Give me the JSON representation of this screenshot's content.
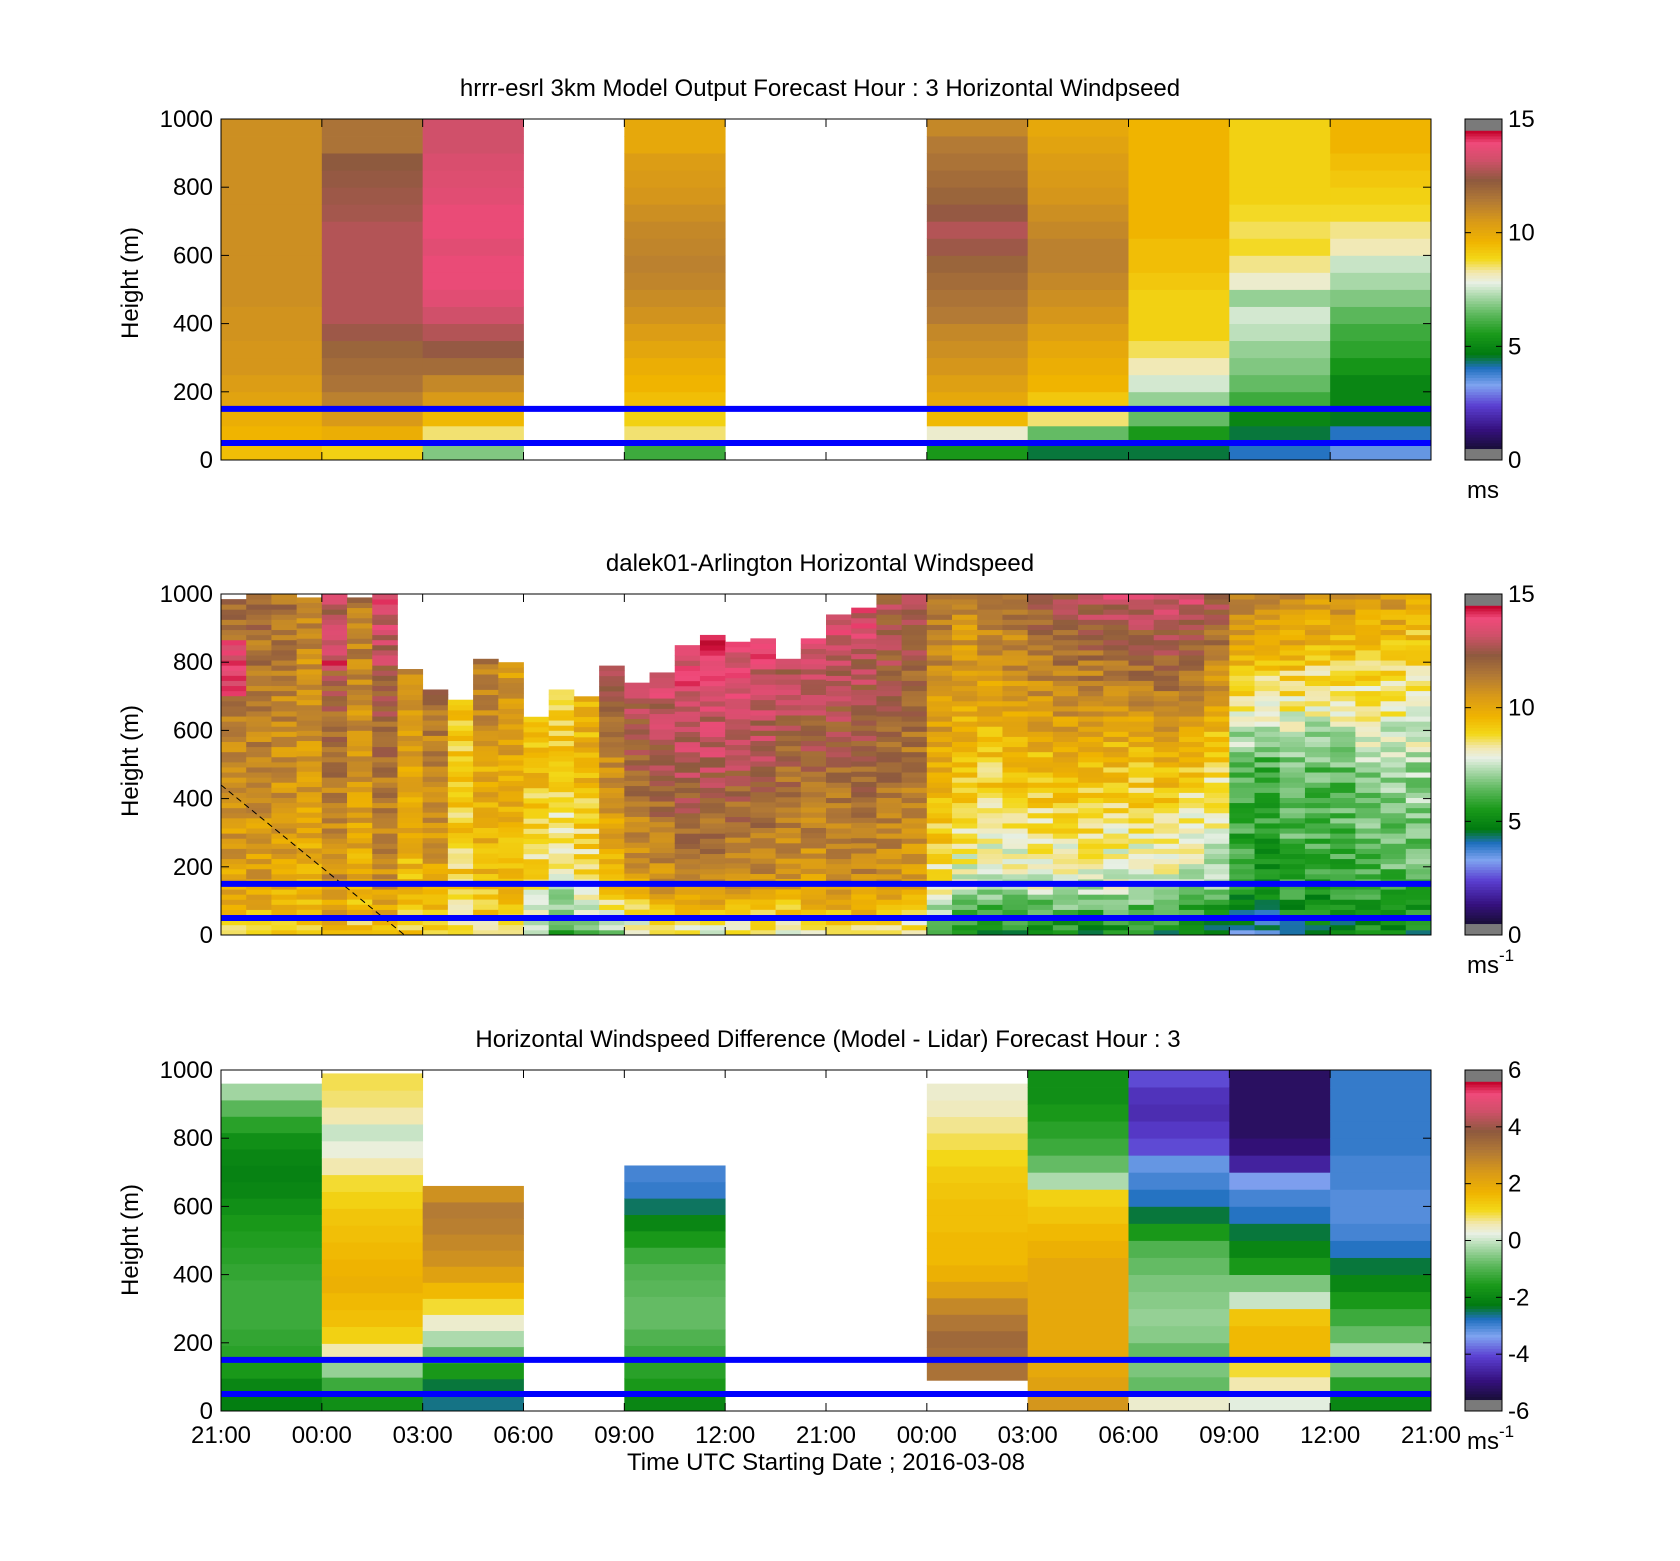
{
  "chart_data": [
    {
      "type": "heatmap",
      "title": "hrrr-esrl 3km Model Output   Forecast Hour : 3 Horizontal Windpseed",
      "ylabel": "Height (m)",
      "ylim": [
        0,
        1000
      ],
      "yticks": [
        "0",
        "200",
        "400",
        "600",
        "800",
        "1000"
      ],
      "colorbar": {
        "min": 0,
        "max": 15,
        "ticks": [
          "0",
          "5",
          "10",
          "15"
        ],
        "unit": "ms"
      },
      "reference_lines_m": [
        50,
        150
      ],
      "columns": [
        {
          "slot": 0,
          "top_m": 1000,
          "bottom_m": 0,
          "profile": [
            9.4,
            9.6,
            9.8,
            10.2,
            10.4,
            10.6,
            10.6,
            10.7,
            10.7,
            10.8,
            10.8,
            10.8,
            10.8,
            10.8,
            10.8,
            10.8,
            10.8,
            10.8,
            10.8,
            10.8
          ]
        },
        {
          "slot": 1,
          "top_m": 1000,
          "bottom_m": 0,
          "profile": [
            9.0,
            9.8,
            10.5,
            11.2,
            11.6,
            11.8,
            12.0,
            12.5,
            12.8,
            12.8,
            12.8,
            12.8,
            12.8,
            12.8,
            12.6,
            12.5,
            12.4,
            12.3,
            11.6,
            11.6
          ]
        },
        {
          "slot": 2,
          "top_m": 1000,
          "bottom_m": 0,
          "profile": [
            6.8,
            8.5,
            9.5,
            10.5,
            11.0,
            11.8,
            12.4,
            12.8,
            13.2,
            13.6,
            13.8,
            13.8,
            13.6,
            13.8,
            13.8,
            13.6,
            13.5,
            13.4,
            13.2,
            13.2
          ]
        },
        {
          "slot": 4,
          "top_m": 1000,
          "bottom_m": 0,
          "profile": [
            6.0,
            8.5,
            9.0,
            9.4,
            9.6,
            9.8,
            10.1,
            10.4,
            10.7,
            10.9,
            11.1,
            11.2,
            11.1,
            11.0,
            10.8,
            10.6,
            10.5,
            10.4,
            10.0,
            10.0
          ]
        },
        {
          "slot": 7,
          "top_m": 1000,
          "bottom_m": 0,
          "profile": [
            5.5,
            8.0,
            9.5,
            10.0,
            10.3,
            10.6,
            10.8,
            11.0,
            11.4,
            11.6,
            11.8,
            12.0,
            12.5,
            12.8,
            12.4,
            12.0,
            11.8,
            11.6,
            11.4,
            11.0
          ]
        },
        {
          "slot": 8,
          "top_m": 1000,
          "bottom_m": 0,
          "profile": [
            4.5,
            6.5,
            8.5,
            9.2,
            9.6,
            9.8,
            10.0,
            10.3,
            10.6,
            10.8,
            11.0,
            11.2,
            11.2,
            11.0,
            10.8,
            10.6,
            10.5,
            10.4,
            10.2,
            10.0
          ]
        },
        {
          "slot": 9,
          "top_m": 1000,
          "bottom_m": 0,
          "profile": [
            4.5,
            5.5,
            6.5,
            7.0,
            7.6,
            8.2,
            8.6,
            9.0,
            9.0,
            9.0,
            9.2,
            9.4,
            9.4,
            9.6,
            9.6,
            9.6,
            9.6,
            9.6,
            9.6,
            9.6
          ]
        },
        {
          "slot": 10,
          "top_m": 1000,
          "bottom_m": 0,
          "profile": [
            4.0,
            4.5,
            5.0,
            6.0,
            6.5,
            6.8,
            7.0,
            7.4,
            7.6,
            7.0,
            8.0,
            8.4,
            8.8,
            8.6,
            8.8,
            9.0,
            9.0,
            9.0,
            9.0,
            9.0
          ]
        },
        {
          "slot": 11,
          "top_m": 1000,
          "bottom_m": 0,
          "profile": [
            3.5,
            4.0,
            4.6,
            5.0,
            5.0,
            5.4,
            5.8,
            6.0,
            6.4,
            6.8,
            7.2,
            7.5,
            8.2,
            8.4,
            8.8,
            9.0,
            9.2,
            9.4,
            9.6,
            9.6
          ]
        }
      ]
    },
    {
      "type": "heatmap",
      "title": "dalek01-Arlington  Horizontal Windspeed",
      "ylabel": "Height (m)",
      "ylim": [
        0,
        1000
      ],
      "yticks": [
        "0",
        "200",
        "400",
        "600",
        "800",
        "1000"
      ],
      "colorbar": {
        "min": 0,
        "max": 15,
        "ticks": [
          "0",
          "5",
          "10",
          "15"
        ],
        "unit": "ms",
        "unit_sup": "-1"
      },
      "reference_lines_m": [
        50,
        150
      ],
      "annotation": {
        "type": "dashed-line",
        "from": {
          "slot": 0,
          "height_m": 440
        },
        "to": {
          "slot": 1.82,
          "height_m": 0
        }
      },
      "columns": [
        {
          "slot": 0.0,
          "top_m": 985,
          "bottom_m": 0,
          "surface": 9,
          "mid": 11,
          "top": 12,
          "peak_m": 780,
          "peak": 13.5
        },
        {
          "slot": 0.25,
          "top_m": 1000,
          "bottom_m": 0,
          "surface": 9,
          "mid": 11,
          "top": 11.8
        },
        {
          "slot": 0.5,
          "top_m": 1000,
          "bottom_m": 0,
          "surface": 9,
          "mid": 10.8,
          "top": 11.6
        },
        {
          "slot": 0.75,
          "top_m": 990,
          "bottom_m": 0,
          "surface": 9,
          "mid": 10.5,
          "top": 11
        },
        {
          "slot": 1.0,
          "top_m": 1000,
          "bottom_m": 0,
          "surface": 9.5,
          "mid": 11.5,
          "top": 13,
          "peak_m": 850,
          "peak": 13.6
        },
        {
          "slot": 1.25,
          "top_m": 990,
          "bottom_m": 0,
          "surface": 9,
          "mid": 10.5,
          "top": 11.4
        },
        {
          "slot": 1.5,
          "top_m": 1000,
          "bottom_m": 0,
          "surface": 9.5,
          "mid": 11.6,
          "top": 13.5
        },
        {
          "slot": 1.75,
          "top_m": 780,
          "bottom_m": 0,
          "surface": 9,
          "mid": 10,
          "top": 11.5
        },
        {
          "slot": 2.0,
          "top_m": 720,
          "bottom_m": 0,
          "surface": 9,
          "mid": 11,
          "top": 12.5
        },
        {
          "slot": 2.25,
          "top_m": 690,
          "bottom_m": 0,
          "surface": 8.5,
          "mid": 9.2,
          "top": 9.5
        },
        {
          "slot": 2.5,
          "top_m": 810,
          "bottom_m": 0,
          "surface": 8.5,
          "mid": 10,
          "top": 12.5
        },
        {
          "slot": 2.75,
          "top_m": 800,
          "bottom_m": 0,
          "surface": 8.5,
          "mid": 10,
          "top": 11
        },
        {
          "slot": 3.0,
          "top_m": 640,
          "bottom_m": 0,
          "surface": 7,
          "mid": 9.4,
          "top": 10
        },
        {
          "slot": 3.25,
          "top_m": 720,
          "bottom_m": 0,
          "surface": 6,
          "mid": 9,
          "top": 9.5
        },
        {
          "slot": 3.5,
          "top_m": 700,
          "bottom_m": 0,
          "surface": 6.5,
          "mid": 9.6,
          "top": 10.5
        },
        {
          "slot": 3.75,
          "top_m": 790,
          "bottom_m": 0,
          "surface": 7,
          "mid": 11,
          "top": 13.5
        },
        {
          "slot": 4.0,
          "top_m": 740,
          "bottom_m": 0,
          "surface": 7.5,
          "mid": 12,
          "top": 13.8
        },
        {
          "slot": 4.25,
          "top_m": 770,
          "bottom_m": 0,
          "surface": 8,
          "mid": 12.5,
          "top": 14
        },
        {
          "slot": 4.5,
          "top_m": 850,
          "bottom_m": 0,
          "surface": 8,
          "mid": 12.8,
          "top": 14.2
        },
        {
          "slot": 4.75,
          "top_m": 880,
          "bottom_m": 0,
          "surface": 8,
          "mid": 12.8,
          "top": 14.4
        },
        {
          "slot": 5.0,
          "top_m": 860,
          "bottom_m": 0,
          "surface": 8,
          "mid": 12.6,
          "top": 14.2
        },
        {
          "slot": 5.25,
          "top_m": 870,
          "bottom_m": 0,
          "surface": 8,
          "mid": 12.5,
          "top": 14
        },
        {
          "slot": 5.5,
          "top_m": 810,
          "bottom_m": 0,
          "surface": 8,
          "mid": 12,
          "top": 13.8
        },
        {
          "slot": 5.75,
          "top_m": 870,
          "bottom_m": 0,
          "surface": 8,
          "mid": 12,
          "top": 14
        },
        {
          "slot": 6.0,
          "top_m": 940,
          "bottom_m": 0,
          "surface": 8.5,
          "mid": 12,
          "top": 13.8
        },
        {
          "slot": 6.25,
          "top_m": 960,
          "bottom_m": 0,
          "surface": 8.5,
          "mid": 12.2,
          "top": 13.5
        },
        {
          "slot": 6.5,
          "top_m": 1000,
          "bottom_m": 0,
          "surface": 8.5,
          "mid": 12,
          "top": 12.5
        },
        {
          "slot": 6.75,
          "top_m": 1000,
          "bottom_m": 0,
          "surface": 8,
          "mid": 11.5,
          "top": 12.5
        },
        {
          "slot": 7.0,
          "top_m": 1000,
          "bottom_m": 0,
          "surface": 6,
          "mid": 10,
          "top": 11.5
        },
        {
          "slot": 7.25,
          "top_m": 1000,
          "bottom_m": 0,
          "surface": 5,
          "mid": 9.5,
          "top": 11
        },
        {
          "slot": 7.5,
          "top_m": 1000,
          "bottom_m": 0,
          "surface": 5,
          "mid": 9.2,
          "top": 11.5
        },
        {
          "slot": 7.75,
          "top_m": 1000,
          "bottom_m": 0,
          "surface": 5,
          "mid": 9.4,
          "top": 11.8
        },
        {
          "slot": 8.0,
          "top_m": 1000,
          "bottom_m": 0,
          "surface": 5,
          "mid": 9.5,
          "top": 12.5
        },
        {
          "slot": 8.25,
          "top_m": 1000,
          "bottom_m": 0,
          "surface": 5,
          "mid": 9.6,
          "top": 12.8
        },
        {
          "slot": 8.5,
          "top_m": 1000,
          "bottom_m": 0,
          "surface": 5,
          "mid": 9.5,
          "top": 13
        },
        {
          "slot": 8.75,
          "top_m": 1000,
          "bottom_m": 0,
          "surface": 5,
          "mid": 9.4,
          "top": 13.2
        },
        {
          "slot": 9.0,
          "top_m": 1000,
          "bottom_m": 0,
          "surface": 5,
          "mid": 9.4,
          "top": 13.4
        },
        {
          "slot": 9.25,
          "top_m": 1000,
          "bottom_m": 0,
          "surface": 5,
          "mid": 9.6,
          "top": 13.6
        },
        {
          "slot": 9.5,
          "top_m": 1000,
          "bottom_m": 0,
          "surface": 4.5,
          "mid": 9.2,
          "top": 13.4
        },
        {
          "slot": 9.75,
          "top_m": 1000,
          "bottom_m": 0,
          "surface": 4.5,
          "mid": 8.8,
          "top": 12.8
        },
        {
          "slot": 10.0,
          "top_m": 1000,
          "bottom_m": 0,
          "surface": 4,
          "mid": 6.5,
          "top": 11.5
        },
        {
          "slot": 10.25,
          "top_m": 1000,
          "bottom_m": 0,
          "surface": 4,
          "mid": 6.2,
          "top": 11.2
        },
        {
          "slot": 10.5,
          "top_m": 1000,
          "bottom_m": 0,
          "surface": 4.5,
          "mid": 6.8,
          "top": 11
        },
        {
          "slot": 10.75,
          "top_m": 1000,
          "bottom_m": 0,
          "surface": 4.5,
          "mid": 6.5,
          "top": 10.8
        },
        {
          "slot": 11.0,
          "top_m": 1000,
          "bottom_m": 0,
          "surface": 4.5,
          "mid": 6.6,
          "top": 10.8
        },
        {
          "slot": 11.25,
          "top_m": 1000,
          "bottom_m": 0,
          "surface": 5,
          "mid": 7,
          "top": 10.5
        },
        {
          "slot": 11.5,
          "top_m": 1000,
          "bottom_m": 0,
          "surface": 5,
          "mid": 7,
          "top": 10.6
        },
        {
          "slot": 11.75,
          "top_m": 1000,
          "bottom_m": 0,
          "surface": 5,
          "mid": 7.2,
          "top": 10
        }
      ]
    },
    {
      "type": "heatmap",
      "title": "Horizontal Windspeed Difference (Model - Lidar) Forecast Hour : 3",
      "ylabel": "Height (m)",
      "xlabel": "Time UTC  Starting Date ; 2016-03-08",
      "ylim": [
        0,
        1000
      ],
      "yticks": [
        "0",
        "200",
        "400",
        "600",
        "800",
        "1000"
      ],
      "xticks": [
        "21:00",
        "00:00",
        "03:00",
        "06:00",
        "09:00",
        "12:00",
        "21:00",
        "00:00",
        "03:00",
        "06:00",
        "09:00",
        "12:00",
        "21:00"
      ],
      "colorbar": {
        "min": -6,
        "max": 6,
        "ticks": [
          "-6",
          "-4",
          "-2",
          "0",
          "2",
          "4",
          "6"
        ],
        "unit": "ms",
        "unit_sup": "-1"
      },
      "reference_lines_m": [
        50,
        150
      ],
      "columns": [
        {
          "slot": 0,
          "top_m": 960,
          "bottom_m": 0,
          "profile": [
            -2.2,
            -2.0,
            -1.6,
            -1.4,
            -1.3,
            -1.2,
            -1.2,
            -1.2,
            -1.3,
            -1.4,
            -1.5,
            -1.6,
            -1.8,
            -2.0,
            -2.1,
            -2.0,
            -1.8,
            -1.4,
            -0.9,
            -0.3
          ]
        },
        {
          "slot": 1,
          "top_m": 990,
          "bottom_m": 0,
          "profile": [
            -1.8,
            -1.2,
            -0.4,
            0.6,
            1.2,
            1.5,
            1.6,
            1.8,
            1.7,
            1.6,
            1.5,
            1.4,
            1.2,
            1.0,
            0.6,
            0.3,
            0.0,
            0.6,
            0.8,
            0.9
          ]
        },
        {
          "slot": 2,
          "top_m": 660,
          "bottom_m": 0,
          "profile": [
            -2.6,
            -2.4,
            -1.6,
            -0.8,
            -0.2,
            0.4,
            1.0,
            1.6,
            2.2,
            2.6,
            2.8,
            3.0,
            3.1,
            2.6
          ]
        },
        {
          "slot": 4,
          "top_m": 720,
          "bottom_m": 0,
          "profile": [
            -2.0,
            -1.6,
            -1.4,
            -1.2,
            -1.0,
            -0.8,
            -0.8,
            -0.9,
            -1.0,
            -1.2,
            -1.6,
            -2.0,
            -2.5,
            -2.9,
            -3.0
          ]
        },
        {
          "slot": 7,
          "top_m": 960,
          "bottom_m": 90,
          "profile": [
            3.3,
            3.4,
            3.5,
            3.2,
            2.8,
            2.2,
            1.8,
            1.6,
            1.6,
            1.5,
            1.5,
            1.4,
            1.3,
            1.1,
            0.9,
            0.7,
            0.5,
            0.4
          ]
        },
        {
          "slot": 8,
          "top_m": 1000,
          "bottom_m": 0,
          "profile": [
            2.5,
            2.2,
            2.0,
            2.0,
            2.0,
            2.0,
            2.0,
            2.0,
            2.0,
            1.8,
            1.6,
            1.4,
            1.2,
            -0.2,
            -0.8,
            -1.2,
            -1.4,
            -1.6,
            -1.8,
            -1.8
          ]
        },
        {
          "slot": 9,
          "top_m": 1000,
          "bottom_m": 0,
          "profile": [
            0.4,
            -0.8,
            -0.6,
            -0.8,
            -0.5,
            -0.4,
            -0.5,
            -0.6,
            -0.8,
            -1.0,
            -1.6,
            -2.4,
            -2.8,
            -3.0,
            -3.2,
            -4.0,
            -4.2,
            -4.4,
            -4.3,
            -4.0
          ]
        },
        {
          "slot": 10,
          "top_m": 1000,
          "bottom_m": 0,
          "profile": [
            0.2,
            0.6,
            1.0,
            1.6,
            1.6,
            1.4,
            0.0,
            -0.6,
            -1.6,
            -2.0,
            -2.4,
            -2.8,
            -3.0,
            -3.4,
            -4.6,
            -5.0,
            -5.2,
            -5.2,
            -5.2,
            -5.2
          ]
        },
        {
          "slot": 11,
          "top_m": 1000,
          "bottom_m": 0,
          "profile": [
            -2.0,
            -1.4,
            -0.6,
            -0.2,
            -0.8,
            -1.2,
            -1.6,
            -2.0,
            -2.4,
            -2.8,
            -3.0,
            -3.1,
            -3.1,
            -3.0,
            -3.0,
            -2.9,
            -2.9,
            -2.9,
            -2.9,
            -2.9
          ]
        }
      ]
    }
  ]
}
